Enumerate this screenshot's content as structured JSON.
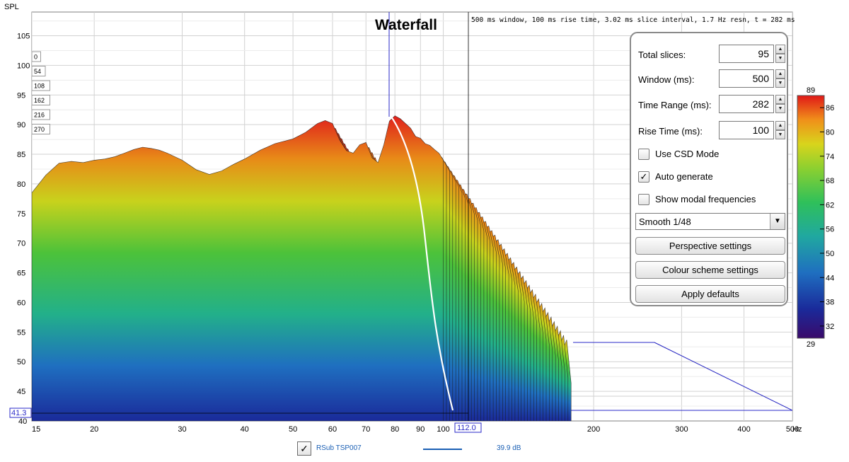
{
  "chart_data": {
    "type": "area",
    "title": "Waterfall",
    "info": "500 ms window, 100 ms rise time, 3.02 ms slice interval, 1.7 Hz resn, t = 282 ms",
    "ylabel": "SPL",
    "xunit": "Hz",
    "x_scale": "log",
    "xlim": [
      15,
      500
    ],
    "ylim": [
      40,
      109
    ],
    "grid": true,
    "y_ticks": [
      45,
      50,
      55,
      60,
      65,
      70,
      75,
      80,
      85,
      90,
      95,
      100,
      105
    ],
    "x_ticks": [
      15,
      20,
      30,
      40,
      50,
      60,
      70,
      80,
      90,
      100,
      200,
      300,
      400,
      500
    ],
    "y_cursor_label": "41.3",
    "x_cursor_label": "112.0",
    "time_labels": [
      "0",
      "54",
      "108",
      "162",
      "216",
      "270"
    ],
    "time_ms_total": 282,
    "front_slice": {
      "x": [
        15,
        16,
        17,
        18,
        19,
        20,
        21,
        22,
        23,
        24,
        25,
        26,
        27,
        28,
        30,
        32,
        34,
        36,
        38,
        40,
        43,
        46,
        50,
        53,
        56,
        58,
        60,
        62,
        64,
        66,
        68,
        70,
        72,
        74,
        76,
        78,
        80,
        82,
        84,
        86,
        88,
        90,
        92,
        94,
        96,
        98,
        100
      ],
      "y": [
        78.5,
        81.5,
        83.5,
        83.8,
        83.6,
        84,
        84.2,
        84.6,
        85.2,
        85.8,
        86.2,
        86,
        85.7,
        85.2,
        84,
        82.4,
        81.6,
        82.2,
        83.3,
        84.2,
        85.7,
        86.8,
        87.6,
        88.7,
        90.2,
        90.7,
        90.2,
        87.4,
        85.6,
        85.2,
        86.6,
        87,
        84.4,
        83.6,
        86.6,
        90.6,
        91.5,
        91,
        90.2,
        89.4,
        88,
        87.7,
        86.8,
        86.5,
        85.8,
        85.2,
        84
      ]
    },
    "colour_scale": {
      "min": 29,
      "max": 89,
      "ticks": [
        32,
        38,
        44,
        50,
        56,
        62,
        68,
        74,
        80,
        86
      ]
    }
  },
  "controls": {
    "total_slices_label": "Total slices:",
    "total_slices_value": "95",
    "window_label": "Window (ms):",
    "window_value": "500",
    "time_range_label": "Time Range (ms):",
    "time_range_value": "282",
    "rise_time_label": "Rise Time (ms):",
    "rise_time_value": "100",
    "use_csd_label": "Use CSD Mode",
    "use_csd_checked": false,
    "auto_generate_label": "Auto generate",
    "auto_generate_checked": true,
    "show_modal_label": "Show modal frequencies",
    "show_modal_checked": false,
    "smoothing_value": "Smooth 1/48",
    "perspective_button": "Perspective settings",
    "colour_scheme_button": "Colour scheme settings",
    "apply_defaults_button": "Apply defaults"
  },
  "legend": {
    "checked": true,
    "name": "RSub  TSP007",
    "value": "39.9 dB",
    "color": "#1a5fb4"
  }
}
